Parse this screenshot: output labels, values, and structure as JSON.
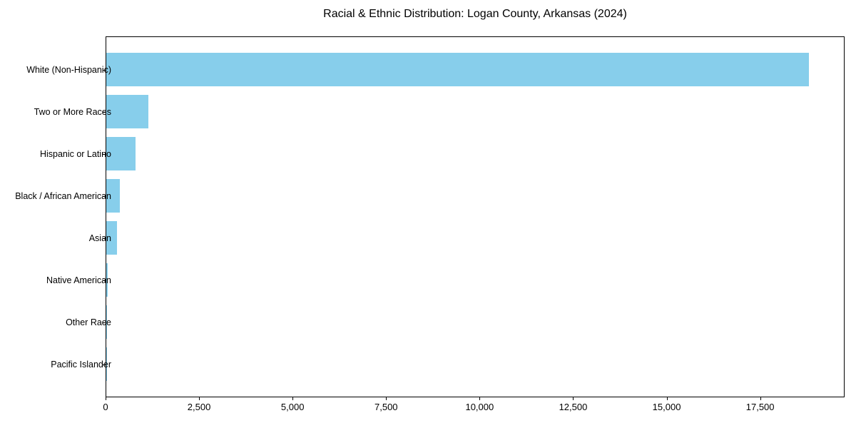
{
  "figure": {
    "title": "Racial & Ethnic Distribution: Logan County, Arkansas (2024)"
  },
  "chart_data": {
    "type": "bar",
    "orientation": "horizontal",
    "title": "Racial & Ethnic Distribution: Logan County, Arkansas (2024)",
    "categories": [
      "White (Non-Hispanic)",
      "Two or More Races",
      "Hispanic or Latino",
      "Black / African American",
      "Asian",
      "Native American",
      "Other Race",
      "Pacific Islander"
    ],
    "values": [
      18780,
      1120,
      780,
      370,
      290,
      40,
      15,
      5
    ],
    "xlabel": "",
    "ylabel": "",
    "xlim": [
      0,
      19719
    ],
    "x_ticks": [
      0,
      2500,
      5000,
      7500,
      10000,
      12500,
      15000,
      17500
    ],
    "x_tick_labels": [
      "0",
      "2,500",
      "5,000",
      "7,500",
      "10,000",
      "12,500",
      "15,000",
      "17,500"
    ],
    "bar_color": "#87CEEB",
    "text_color": "#000000",
    "grid": false,
    "legend": false
  }
}
